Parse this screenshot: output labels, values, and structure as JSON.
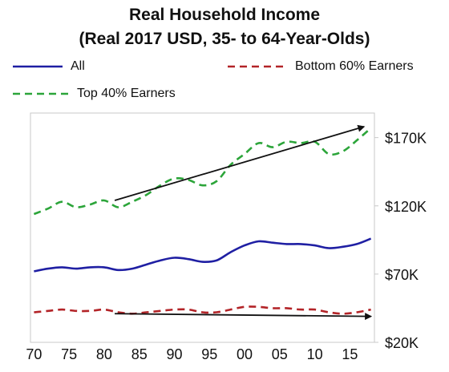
{
  "chart_data": {
    "type": "line",
    "title": "Real Household Income",
    "subtitle": "(Real 2017 USD, 35- to 64-Year-Olds)",
    "x_ticks": [
      "70",
      "75",
      "80",
      "85",
      "90",
      "95",
      "00",
      "05",
      "10",
      "15"
    ],
    "y_ticks": [
      "$20K",
      "$70K",
      "$120K",
      "$170K"
    ],
    "y_tick_values": [
      20,
      70,
      120,
      170
    ],
    "ylim": [
      20,
      188
    ],
    "xlim": [
      1969.5,
      2018.5
    ],
    "grid": false,
    "legend_position": "top",
    "series": [
      {
        "name": "All",
        "color": "#1f1fa3",
        "style": "solid",
        "points": [
          [
            1970,
            72
          ],
          [
            1972,
            74
          ],
          [
            1974,
            75
          ],
          [
            1976,
            74
          ],
          [
            1978,
            75
          ],
          [
            1980,
            75
          ],
          [
            1982,
            73
          ],
          [
            1984,
            74
          ],
          [
            1986,
            77
          ],
          [
            1988,
            80
          ],
          [
            1990,
            82
          ],
          [
            1992,
            81
          ],
          [
            1994,
            79
          ],
          [
            1996,
            80
          ],
          [
            1998,
            86
          ],
          [
            2000,
            91
          ],
          [
            2002,
            94
          ],
          [
            2004,
            93
          ],
          [
            2006,
            92
          ],
          [
            2008,
            92
          ],
          [
            2010,
            91
          ],
          [
            2012,
            89
          ],
          [
            2014,
            90
          ],
          [
            2016,
            92
          ],
          [
            2018,
            96
          ]
        ]
      },
      {
        "name": "Bottom 60% Earners",
        "color": "#b32428",
        "style": "dashed",
        "points": [
          [
            1970,
            42
          ],
          [
            1972,
            43
          ],
          [
            1974,
            44
          ],
          [
            1976,
            43
          ],
          [
            1978,
            43
          ],
          [
            1980,
            44
          ],
          [
            1982,
            42
          ],
          [
            1984,
            41
          ],
          [
            1986,
            42
          ],
          [
            1988,
            43
          ],
          [
            1990,
            44
          ],
          [
            1992,
            44
          ],
          [
            1994,
            42
          ],
          [
            1996,
            42
          ],
          [
            1998,
            44
          ],
          [
            2000,
            46
          ],
          [
            2002,
            46
          ],
          [
            2004,
            45
          ],
          [
            2006,
            45
          ],
          [
            2008,
            44
          ],
          [
            2010,
            44
          ],
          [
            2012,
            42
          ],
          [
            2014,
            41
          ],
          [
            2016,
            42
          ],
          [
            2018,
            44
          ]
        ]
      },
      {
        "name": "Top 40% Earners",
        "color": "#2ca53a",
        "style": "dashed",
        "points": [
          [
            1970,
            114
          ],
          [
            1972,
            118
          ],
          [
            1974,
            123
          ],
          [
            1976,
            119
          ],
          [
            1978,
            121
          ],
          [
            1980,
            124
          ],
          [
            1982,
            119
          ],
          [
            1984,
            123
          ],
          [
            1986,
            128
          ],
          [
            1988,
            135
          ],
          [
            1990,
            140
          ],
          [
            1992,
            139
          ],
          [
            1994,
            135
          ],
          [
            1996,
            138
          ],
          [
            1998,
            150
          ],
          [
            2000,
            158
          ],
          [
            2002,
            166
          ],
          [
            2004,
            163
          ],
          [
            2006,
            167
          ],
          [
            2008,
            166
          ],
          [
            2010,
            167
          ],
          [
            2012,
            158
          ],
          [
            2014,
            160
          ],
          [
            2016,
            168
          ],
          [
            2018,
            177
          ]
        ]
      }
    ],
    "annotations": [
      {
        "type": "arrow",
        "from": [
          1981.5,
          124
        ],
        "to": [
          2017,
          178
        ],
        "color": "#111111"
      },
      {
        "type": "arrow",
        "from": [
          1981.5,
          41
        ],
        "to": [
          2018,
          39
        ],
        "color": "#111111"
      }
    ]
  }
}
